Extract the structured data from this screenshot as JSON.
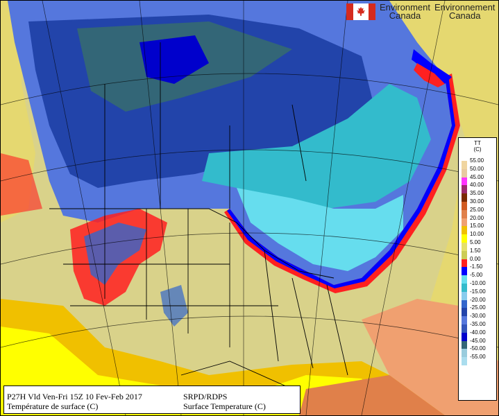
{
  "header": {
    "org_en": "Environment",
    "org_fr": "Environnement",
    "country_en": "Canada",
    "country_fr": "Canada"
  },
  "legend": {
    "title_line1": "TT",
    "title_line2": "(C)",
    "entries": [
      {
        "label": "55.00",
        "color": "#f0d5a0"
      },
      {
        "label": "50.00",
        "color": "#e8c9a0"
      },
      {
        "label": "45.00",
        "color": "#ff33ff"
      },
      {
        "label": "40.00",
        "color": "#9c2a6c"
      },
      {
        "label": "35.00",
        "color": "#7a2a00"
      },
      {
        "label": "30.00",
        "color": "#d05a20"
      },
      {
        "label": "25.00",
        "color": "#e0804a"
      },
      {
        "label": "20.00",
        "color": "#f0a070"
      },
      {
        "label": "15.00",
        "color": "#f0c000"
      },
      {
        "label": "10.00",
        "color": "#ffff00"
      },
      {
        "label": "5.00",
        "color": "#e5e06a"
      },
      {
        "label": "1.50",
        "color": "#cccc55"
      },
      {
        "label": "0.00",
        "color": "#ff2020"
      },
      {
        "label": "-1.50",
        "color": "#0000ff"
      },
      {
        "label": "-5.00",
        "color": "#66ddee"
      },
      {
        "label": "-10.00",
        "color": "#33bbcc"
      },
      {
        "label": "-15.00",
        "color": "#88ccee"
      },
      {
        "label": "-20.00",
        "color": "#3366cc"
      },
      {
        "label": "-25.00",
        "color": "#2244aa"
      },
      {
        "label": "-30.00",
        "color": "#5577dd"
      },
      {
        "label": "-35.00",
        "color": "#3355bb"
      },
      {
        "label": "-40.00",
        "color": "#0000cc"
      },
      {
        "label": "-45.00",
        "color": "#336677"
      },
      {
        "label": "-50.00",
        "color": "#99ccdd"
      },
      {
        "label": "-55.00",
        "color": "#aaddee"
      }
    ]
  },
  "caption": {
    "left_line1": "P27H Vld Ven-Fri 15Z 10 Fev-Feb 2017",
    "left_line2": "Température de surface (C)",
    "right_line1": "SRPD/RDPS",
    "right_line2": "Surface Temperature (C)"
  },
  "map_colors": {
    "hot_orange": "#f0a070",
    "yellow": "#ffff00",
    "olive": "#cccc55",
    "freeze_red": "#ff2020",
    "freeze_blue": "#0000ff",
    "cyan": "#66ddee",
    "teal": "#33bbcc",
    "blue_mid": "#3366cc",
    "blue_dark": "#2244aa",
    "arctic_green": "#336677"
  }
}
